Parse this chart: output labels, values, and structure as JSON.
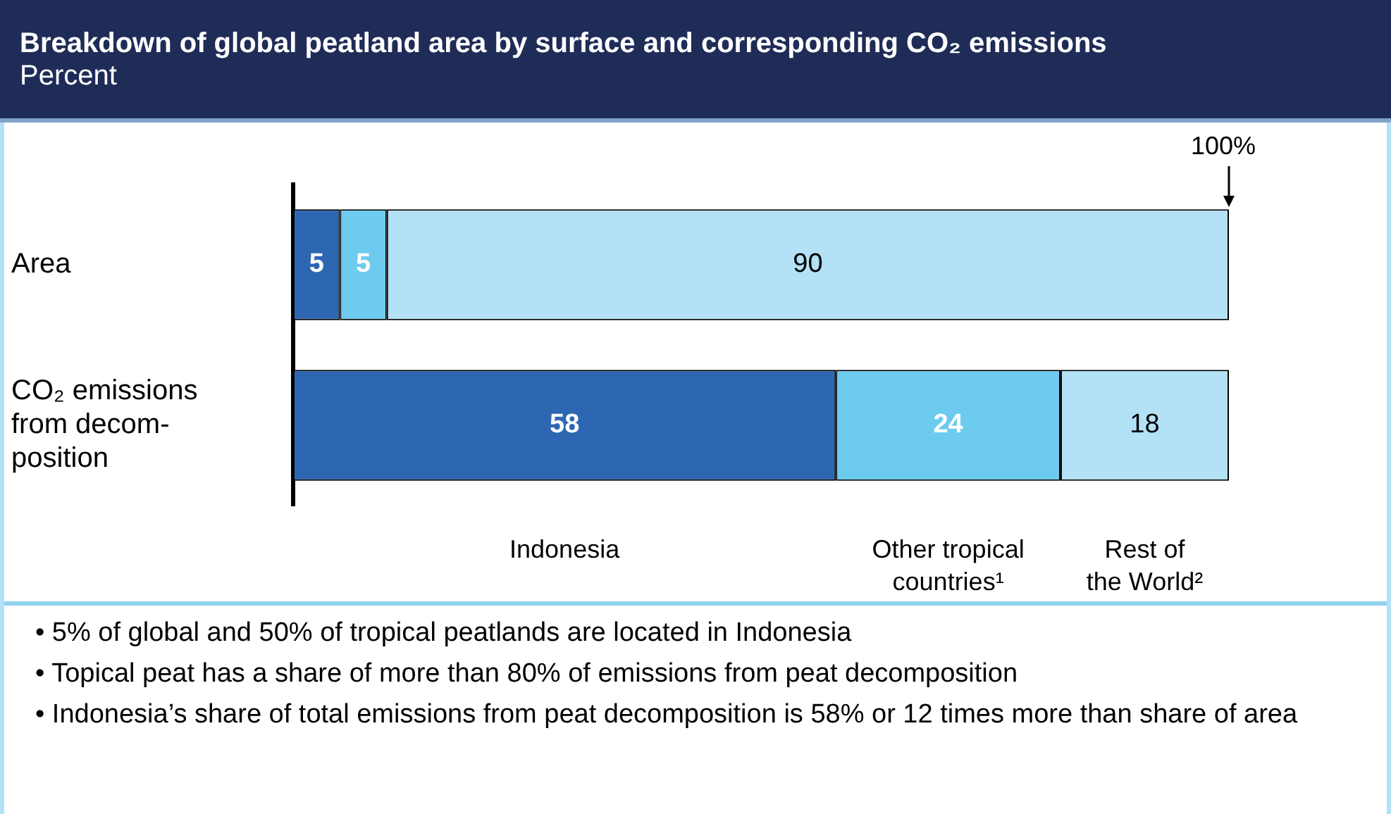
{
  "chart_data": {
    "type": "bar",
    "orientation": "horizontal",
    "stacked": true,
    "title": "Breakdown of global peatland area by surface and corresponding CO₂ emissions",
    "subtitle": "Percent",
    "categories": [
      "Area",
      "CO₂ emissions\nfrom decom-\nposition"
    ],
    "series": [
      {
        "name": "Indonesia",
        "color": "#2e67b1",
        "values": [
          5,
          58
        ]
      },
      {
        "name": "Other tropical\ncountries¹",
        "color": "#6dcbef",
        "values": [
          5,
          24
        ]
      },
      {
        "name": "Rest of\nthe World²",
        "color": "#b3e1f5",
        "values": [
          90,
          18
        ]
      }
    ],
    "xlim": [
      0,
      100
    ],
    "tick_labels": "y",
    "grid": false,
    "legend": false,
    "data_labels": true,
    "annotations": [
      {
        "text": "100%",
        "x": 100
      },
      "• 5% of global and 50% of tropical peatlands are located in Indonesia",
      "• Topical peat has a share of more than 80% of emissions from peat decomposition",
      "• Indonesia’s share of total emissions from peat decomposition is 58% or 12 times more than share of area"
    ]
  }
}
